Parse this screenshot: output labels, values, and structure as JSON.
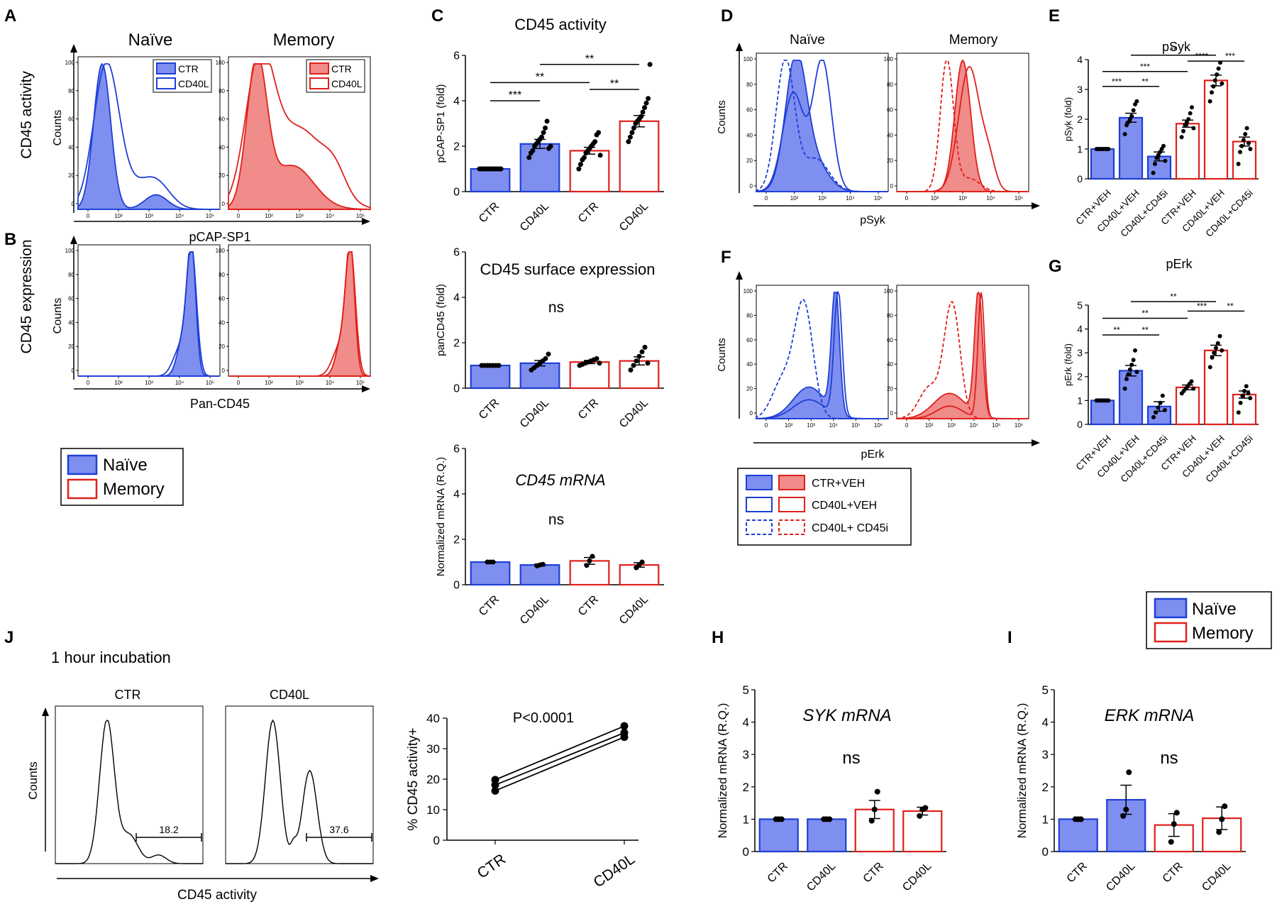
{
  "colors": {
    "naive": "#1f3fd6",
    "naive_fill": "#7f8ff0",
    "memory": "#e0201b",
    "memory_fill": "#f08c8a"
  },
  "panels": {
    "A": {
      "letter": "A",
      "row_label": "CD45 activity",
      "col_naive": "Naïve",
      "col_memory": "Memory",
      "xlabel": "pCAP-SP1",
      "ylabel": "Counts",
      "legend": [
        "CTR",
        "CD40L"
      ]
    },
    "B": {
      "letter": "B",
      "row_label": "CD45 expression",
      "xlabel": "Pan-CD45",
      "ylabel": "Counts"
    },
    "D": {
      "letter": "D",
      "col_naive": "Naïve",
      "col_memory": "Memory",
      "xlabel": "pSyk",
      "ylabel": "Counts"
    },
    "F": {
      "letter": "F",
      "xlabel": "pErk",
      "ylabel": "Counts"
    },
    "J": {
      "letter": "J",
      "subtitle": "1 hour incubation",
      "hist_ctr_title": "CTR",
      "hist_cd40l_title": "CD40L",
      "ylabel": "Counts",
      "xlabel": "CD45 activity",
      "gate_ctr": "18.2",
      "gate_cd40l": "37.6"
    },
    "C": {
      "letter": "C"
    },
    "E": {
      "letter": "E"
    },
    "G": {
      "letter": "G"
    },
    "H": {
      "letter": "H"
    },
    "I": {
      "letter": "I"
    }
  },
  "flow_ticks": {
    "y": [
      "0",
      "20",
      "40",
      "60",
      "80",
      "100"
    ],
    "x": [
      "0",
      "10²",
      "10³",
      "10⁴",
      "10⁵"
    ],
    "x_erk": [
      "0",
      "10²",
      "10³",
      "10⁴",
      "10⁵",
      "10⁶"
    ]
  },
  "legend_naive_memory": {
    "naive": "Naïve",
    "memory": "Memory"
  },
  "legend_df": {
    "ctr": "CTR+VEH",
    "cd40l": "CD40L+VEH",
    "cd45i": "CD40L+ CD45i"
  },
  "chart_data": [
    {
      "id": "C1",
      "type": "bar",
      "title": "CD45 activity",
      "categories": [
        "CTR",
        "CD40L",
        "CTR",
        "CD40L"
      ],
      "groups": [
        "naive",
        "naive",
        "memory",
        "memory"
      ],
      "values": [
        1.0,
        2.1,
        1.8,
        3.1
      ],
      "errors": [
        0.02,
        0.2,
        0.15,
        0.25
      ],
      "ylabel": "pCAP-SP1 (fold)",
      "ylim": [
        0,
        6
      ],
      "yticks": [
        "0",
        "2",
        "4",
        "6"
      ],
      "points": [
        [
          1,
          1,
          1,
          1,
          1,
          1,
          1,
          1,
          1,
          1,
          1,
          1,
          1
        ],
        [
          1.5,
          1.7,
          1.8,
          2.0,
          2.1,
          2.2,
          2.3,
          2.4,
          2.6,
          2.8,
          3.1,
          1.9,
          2.0
        ],
        [
          1.0,
          1.2,
          1.4,
          1.5,
          1.7,
          1.8,
          1.9,
          2.0,
          2.1,
          2.2,
          2.5,
          2.6,
          1.6
        ],
        [
          2.2,
          2.4,
          2.6,
          2.8,
          3.0,
          3.1,
          3.2,
          3.3,
          3.5,
          3.7,
          3.9,
          4.1,
          5.6
        ]
      ],
      "significance": [
        {
          "from": 0,
          "to": 1,
          "label": "***",
          "y": 4.0
        },
        {
          "from": 0,
          "to": 2,
          "label": "**",
          "y": 4.8
        },
        {
          "from": 2,
          "to": 3,
          "label": "**",
          "y": 4.5
        },
        {
          "from": 1,
          "to": 3,
          "label": "**",
          "y": 5.6
        }
      ]
    },
    {
      "id": "C2",
      "type": "bar",
      "title": "CD45 surface expression",
      "note": "ns",
      "categories": [
        "CTR",
        "CD40L",
        "CTR",
        "CD40L"
      ],
      "groups": [
        "naive",
        "naive",
        "memory",
        "memory"
      ],
      "values": [
        1.0,
        1.1,
        1.15,
        1.2
      ],
      "errors": [
        0.02,
        0.12,
        0.07,
        0.18
      ],
      "ylabel": "panCD45 (fold)",
      "ylim": [
        0,
        6
      ],
      "yticks": [
        "0",
        "2",
        "4",
        "6"
      ],
      "points": [
        [
          1,
          1,
          1,
          1,
          1,
          1,
          1
        ],
        [
          0.8,
          0.9,
          1.0,
          1.1,
          1.2,
          1.3,
          1.5
        ],
        [
          1.0,
          1.05,
          1.1,
          1.15,
          1.2,
          1.25,
          1.3,
          1.1
        ],
        [
          0.8,
          1.0,
          1.2,
          1.4,
          1.6,
          1.8,
          1.1
        ]
      ]
    },
    {
      "id": "C3",
      "type": "bar",
      "title": "CD45 mRNA",
      "note": "ns",
      "categories": [
        "CTR",
        "CD40L",
        "CTR",
        "CD40L"
      ],
      "groups": [
        "naive",
        "naive",
        "memory",
        "memory"
      ],
      "values": [
        1.0,
        0.87,
        1.05,
        0.87
      ],
      "errors": [
        0.01,
        0.04,
        0.15,
        0.1
      ],
      "ylabel": "Normalized mRNA (R.Q.)",
      "ylim": [
        0,
        6
      ],
      "yticks": [
        "0",
        "2",
        "4",
        "6"
      ],
      "points": [
        [
          1,
          1,
          1
        ],
        [
          0.83,
          0.87,
          0.9
        ],
        [
          0.85,
          1.05,
          1.25
        ],
        [
          0.75,
          0.87,
          1.0
        ]
      ]
    },
    {
      "id": "E",
      "type": "bar",
      "title": "pSyk",
      "categories": [
        "CTR+VEH",
        "CD40L+VEH",
        "CD40L+CD45i",
        "CTR+VEH",
        "CD40L+VEH",
        "CD40L+CD45i"
      ],
      "groups": [
        "naive",
        "naive",
        "naive",
        "memory",
        "memory",
        "memory"
      ],
      "values": [
        1.0,
        2.05,
        0.75,
        1.85,
        3.3,
        1.25
      ],
      "errors": [
        0.02,
        0.15,
        0.15,
        0.12,
        0.18,
        0.15
      ],
      "ylabel": "pSyk (fold)",
      "ylim": [
        0,
        4
      ],
      "yticks": [
        "0",
        "1",
        "2",
        "3",
        "4"
      ],
      "points": [
        [
          1,
          1,
          1,
          1,
          1,
          1,
          1,
          1
        ],
        [
          1.5,
          1.8,
          1.9,
          2.0,
          2.1,
          2.3,
          2.5,
          2.6
        ],
        [
          0.2,
          0.5,
          0.7,
          0.8,
          0.9,
          1.0,
          1.1,
          0.6
        ],
        [
          1.4,
          1.6,
          1.8,
          1.9,
          2.0,
          2.2,
          2.4,
          1.7
        ],
        [
          2.6,
          2.9,
          3.1,
          3.3,
          3.5,
          3.7,
          3.9,
          3.2
        ],
        [
          0.5,
          0.9,
          1.1,
          1.3,
          1.5,
          1.7,
          1.2,
          1.0
        ]
      ],
      "significance": [
        {
          "from": 0,
          "to": 1,
          "label": "***",
          "y": 3.1
        },
        {
          "from": 1,
          "to": 2,
          "label": "**",
          "y": 3.1
        },
        {
          "from": 0,
          "to": 3,
          "label": "***",
          "y": 3.6
        },
        {
          "from": 1,
          "to": 4,
          "label": "**",
          "y": 4.15
        },
        {
          "from": 3,
          "to": 4,
          "label": "****",
          "y": 3.95
        },
        {
          "from": 4,
          "to": 5,
          "label": "***",
          "y": 3.95
        }
      ]
    },
    {
      "id": "G",
      "type": "bar",
      "title": "pErk",
      "categories": [
        "CTR+VEH",
        "CD40L+VEH",
        "CD40L+CD45i",
        "CTR+VEH",
        "CD40L+VEH",
        "CD40L+CD45i"
      ],
      "groups": [
        "naive",
        "naive",
        "naive",
        "memory",
        "memory",
        "memory"
      ],
      "values": [
        1.0,
        2.25,
        0.75,
        1.55,
        3.1,
        1.25
      ],
      "errors": [
        0.02,
        0.22,
        0.2,
        0.1,
        0.22,
        0.15
      ],
      "ylabel": "pErk (fold)",
      "ylim": [
        0,
        5
      ],
      "yticks": [
        "0",
        "1",
        "2",
        "3",
        "4",
        "5"
      ],
      "points": [
        [
          1,
          1,
          1,
          1,
          1,
          1,
          1,
          1
        ],
        [
          1.5,
          1.9,
          2.1,
          2.3,
          2.5,
          2.7,
          3.1,
          2.2
        ],
        [
          0.3,
          0.5,
          0.7,
          0.9,
          1.2,
          0.6
        ],
        [
          1.3,
          1.4,
          1.5,
          1.6,
          1.7,
          1.8,
          1.5
        ],
        [
          2.4,
          2.8,
          3.0,
          3.2,
          3.4,
          3.7,
          3.1
        ],
        [
          0.5,
          0.9,
          1.2,
          1.4,
          1.6,
          1.3,
          1.1
        ]
      ],
      "significance": [
        {
          "from": 0,
          "to": 1,
          "label": "**",
          "y": 3.75
        },
        {
          "from": 1,
          "to": 2,
          "label": "**",
          "y": 3.75
        },
        {
          "from": 0,
          "to": 3,
          "label": "**",
          "y": 4.45
        },
        {
          "from": 1,
          "to": 4,
          "label": "**",
          "y": 5.15
        },
        {
          "from": 3,
          "to": 4,
          "label": "***",
          "y": 4.75
        },
        {
          "from": 4,
          "to": 5,
          "label": "**",
          "y": 4.75
        }
      ]
    },
    {
      "id": "H",
      "type": "bar",
      "title": "SYK mRNA",
      "note": "ns",
      "categories": [
        "CTR",
        "CD40L",
        "CTR",
        "CD40L"
      ],
      "groups": [
        "naive",
        "naive",
        "memory",
        "memory"
      ],
      "values": [
        1.0,
        1.0,
        1.3,
        1.25
      ],
      "errors": [
        0.01,
        0.01,
        0.28,
        0.12
      ],
      "ylabel": "Normalized mRNA (R.Q.)",
      "ylim": [
        0,
        5
      ],
      "yticks": [
        "0",
        "1",
        "2",
        "3",
        "4",
        "5"
      ],
      "points": [
        [
          1,
          1,
          1
        ],
        [
          1,
          1,
          1
        ],
        [
          0.95,
          1.3,
          1.85
        ],
        [
          1.1,
          1.3,
          1.35
        ]
      ]
    },
    {
      "id": "I",
      "type": "bar",
      "title": "ERK mRNA",
      "note": "ns",
      "categories": [
        "CTR",
        "CD40L",
        "CTR",
        "CD40L"
      ],
      "groups": [
        "naive",
        "naive",
        "memory",
        "memory"
      ],
      "values": [
        1.0,
        1.6,
        0.82,
        1.03
      ],
      "errors": [
        0.01,
        0.45,
        0.35,
        0.35
      ],
      "ylabel": "Normalized mRNA (R.Q.)",
      "ylim": [
        0,
        5
      ],
      "yticks": [
        "0",
        "1",
        "2",
        "3",
        "4",
        "5"
      ],
      "points": [
        [
          1,
          1,
          1
        ],
        [
          1.1,
          1.3,
          2.45
        ],
        [
          0.3,
          0.85,
          1.2
        ],
        [
          0.6,
          1.0,
          1.4
        ]
      ]
    },
    {
      "id": "J2",
      "type": "line",
      "title": "P<0.0001",
      "categories": [
        "CTR",
        "CD40L"
      ],
      "series": [
        {
          "values": [
            16.2,
            33.8
          ]
        },
        {
          "values": [
            18.1,
            35.2
          ]
        },
        {
          "values": [
            19.8,
            37.4
          ]
        }
      ],
      "ylabel": "% CD45 activity+",
      "ylim": [
        0,
        40
      ],
      "yticks": [
        "0",
        "10",
        "20",
        "30",
        "40"
      ]
    }
  ]
}
